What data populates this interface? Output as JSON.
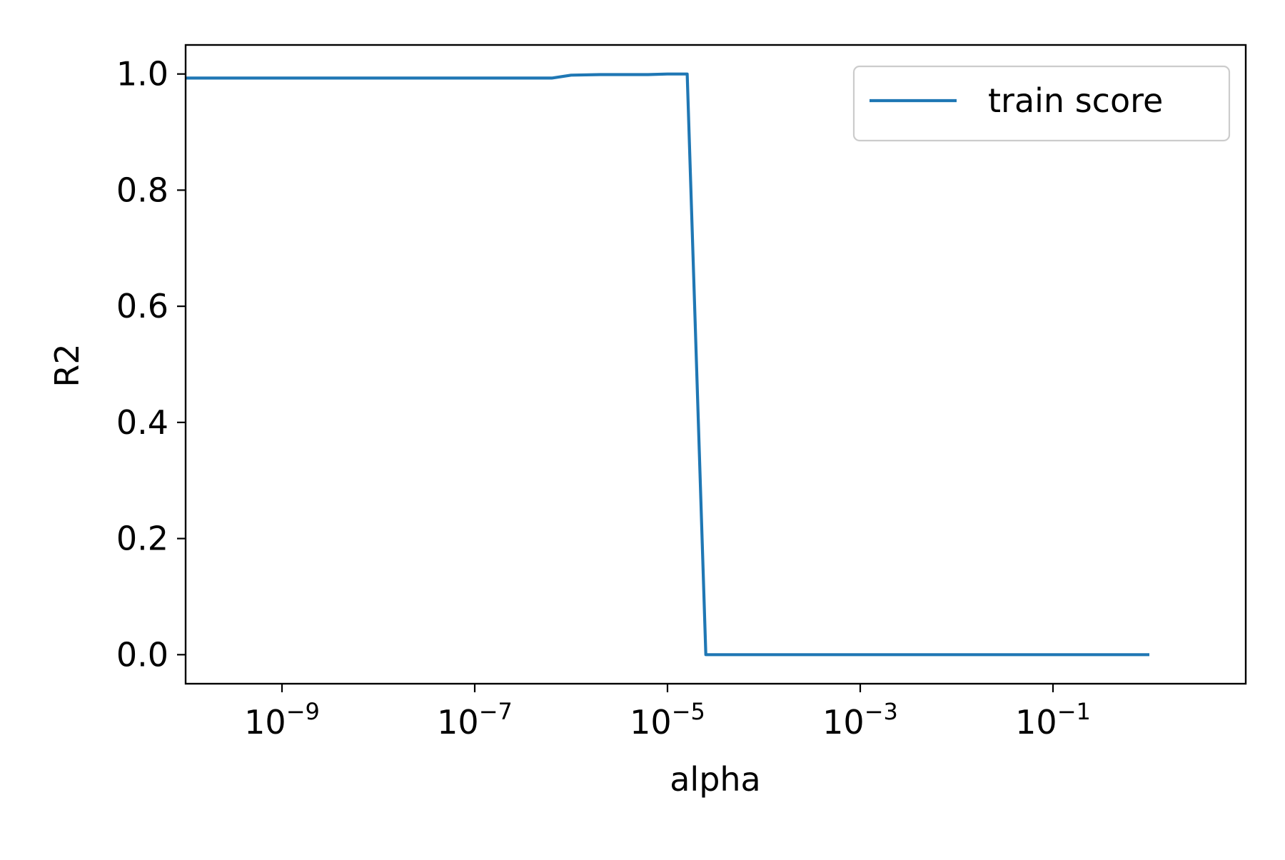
{
  "chart_data": {
    "type": "line",
    "title": "",
    "xlabel": "alpha",
    "ylabel": "R2",
    "xscale": "log",
    "xlim": [
      1e-10,
      10
    ],
    "ylim": [
      -0.05,
      1.05
    ],
    "grid": false,
    "legend_position": "top-right",
    "x_ticks": [
      {
        "value": 1e-09,
        "base": "10",
        "exp": "−9"
      },
      {
        "value": 1e-07,
        "base": "10",
        "exp": "−7"
      },
      {
        "value": 1e-05,
        "base": "10",
        "exp": "−5"
      },
      {
        "value": 0.001,
        "base": "10",
        "exp": "−3"
      },
      {
        "value": 0.1,
        "base": "10",
        "exp": "−1"
      }
    ],
    "y_ticks": [
      {
        "value": 0.0,
        "label": "0.0"
      },
      {
        "value": 0.2,
        "label": "0.2"
      },
      {
        "value": 0.4,
        "label": "0.4"
      },
      {
        "value": 0.6,
        "label": "0.6"
      },
      {
        "value": 0.8,
        "label": "0.8"
      },
      {
        "value": 1.0,
        "label": "1.0"
      }
    ],
    "series": [
      {
        "name": "train score",
        "color": "#1f77b4",
        "x": [
          1e-10,
          1e-09,
          1e-08,
          1e-07,
          6.3e-07,
          1e-06,
          2e-06,
          6.3e-06,
          1e-05,
          1.6e-05,
          2.5e-05,
          0.0001,
          0.001,
          0.01,
          0.1,
          1
        ],
        "y": [
          0.993,
          0.993,
          0.993,
          0.993,
          0.993,
          0.998,
          0.999,
          0.999,
          1.0,
          1.0,
          0.0,
          0.0,
          0.0,
          0.0,
          0.0,
          0.0
        ]
      }
    ]
  }
}
